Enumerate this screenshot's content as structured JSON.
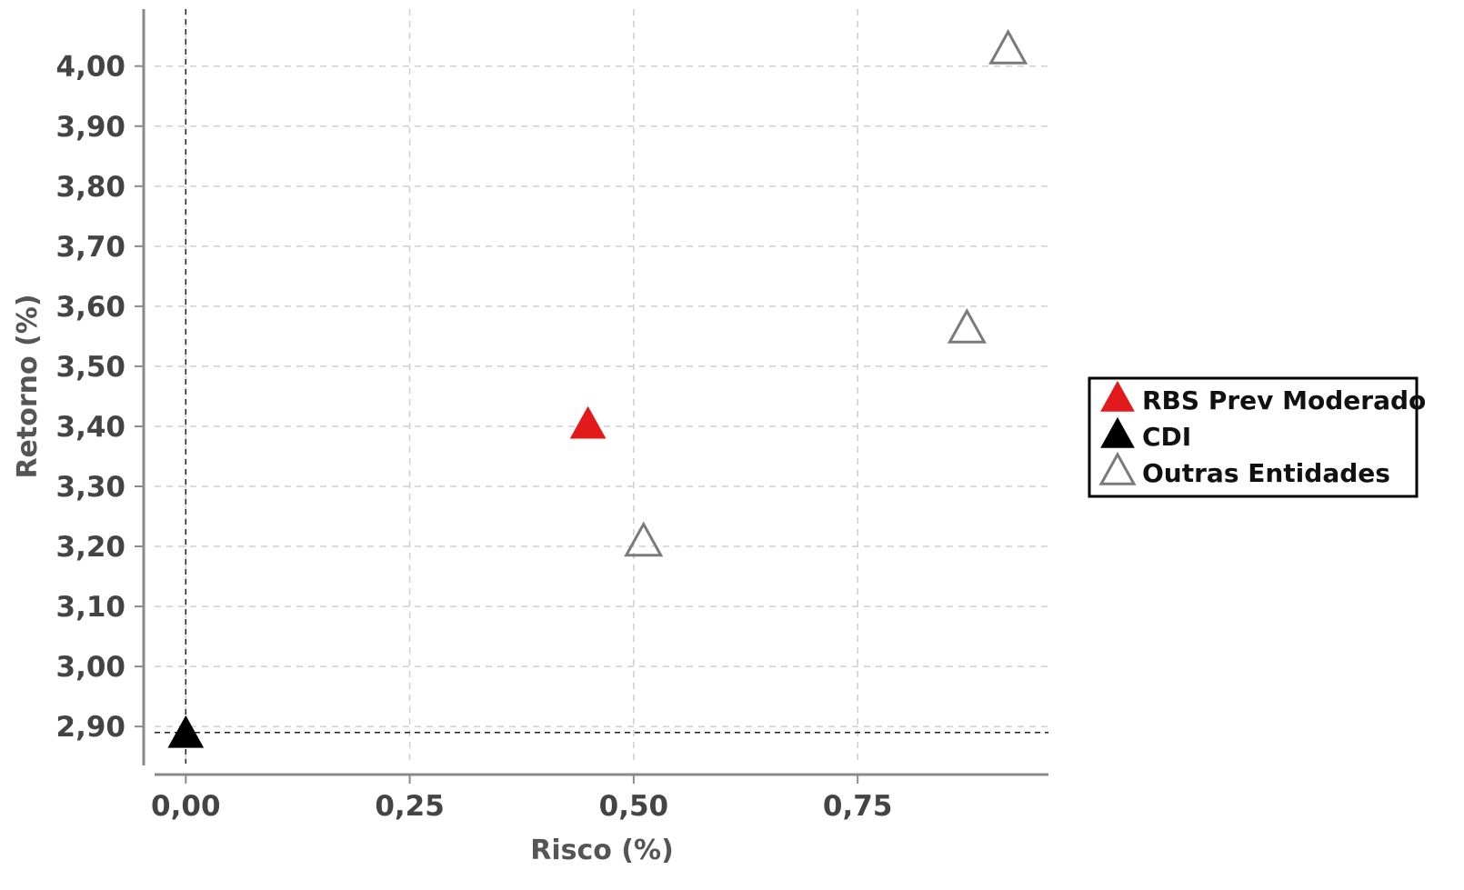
{
  "chart_data": {
    "type": "scatter",
    "xlabel": "Risco (%)",
    "ylabel": "Retorno (%)",
    "xlim": [
      -0.047,
      0.963
    ],
    "ylim": [
      2.82,
      4.095
    ],
    "x_ticks": [
      {
        "value": 0.0,
        "label": "0,00"
      },
      {
        "value": 0.25,
        "label": "0,25"
      },
      {
        "value": 0.5,
        "label": "0,50"
      },
      {
        "value": 0.75,
        "label": "0,75"
      }
    ],
    "y_ticks": [
      {
        "value": 2.9,
        "label": "2,90"
      },
      {
        "value": 3.0,
        "label": "3,00"
      },
      {
        "value": 3.1,
        "label": "3,10"
      },
      {
        "value": 3.2,
        "label": "3,20"
      },
      {
        "value": 3.3,
        "label": "3,30"
      },
      {
        "value": 3.4,
        "label": "3,40"
      },
      {
        "value": 3.5,
        "label": "3,50"
      },
      {
        "value": 3.6,
        "label": "3,60"
      },
      {
        "value": 3.7,
        "label": "3,70"
      },
      {
        "value": 3.8,
        "label": "3,80"
      },
      {
        "value": 3.9,
        "label": "3,90"
      },
      {
        "value": 4.0,
        "label": "4,00"
      }
    ],
    "grid": true,
    "reference_lines": {
      "x": 0.0,
      "y": 2.89
    },
    "legend_position": "right",
    "series": [
      {
        "name": "RBS Prev Moderado",
        "marker": "filled-triangle",
        "color": "#e31a1c",
        "points": [
          {
            "x": 0.449,
            "y": 3.4
          }
        ]
      },
      {
        "name": "CDI",
        "marker": "filled-triangle",
        "color": "#000000",
        "points": [
          {
            "x": 0.0,
            "y": 2.885
          }
        ]
      },
      {
        "name": "Outras Entidades",
        "marker": "hollow-triangle",
        "color": "#7a7a7a",
        "points": [
          {
            "x": 0.511,
            "y": 3.205
          },
          {
            "x": 0.872,
            "y": 3.56
          },
          {
            "x": 0.918,
            "y": 4.025
          }
        ]
      }
    ]
  }
}
